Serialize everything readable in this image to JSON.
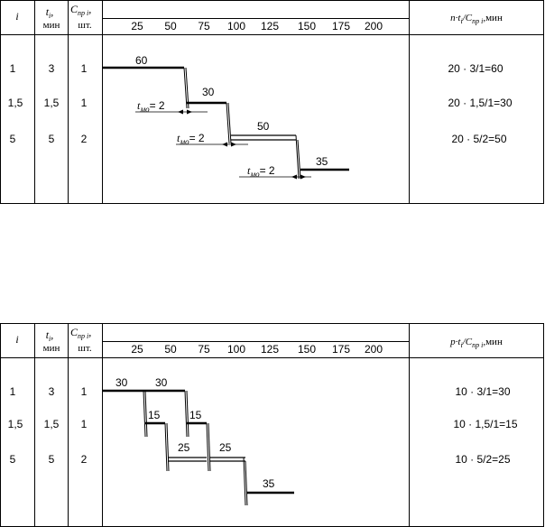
{
  "headers": {
    "i": "i",
    "t_main": "t",
    "t_sub": "i",
    "t_unit": "мин",
    "c_main": "C",
    "c_sub": "пр i",
    "c_unit": "шт.",
    "ticks": [
      "25",
      "50",
      "75",
      "100",
      "125",
      "150",
      "175",
      "200"
    ]
  },
  "tables": [
    {
      "id": "sequential",
      "formula_var": "n",
      "formula_rest": "·t",
      "formula_sub_i": "i",
      "formula_slash": "/C",
      "formula_sub_pr": "пр i",
      "formula_unit": ",мин",
      "rows": [
        {
          "i": "1",
          "t": "3",
          "c": "1",
          "calc": "20 · 3/1=60"
        },
        {
          "i": "1,5",
          "t": "1,5",
          "c": "1",
          "calc": "20 · 1,5/1=30"
        },
        {
          "i": "5",
          "t": "5",
          "c": "2",
          "calc": "20 · 5/2=50"
        }
      ],
      "bar_labels": [
        "60",
        "30",
        "50",
        "35"
      ],
      "tmo_labels": [
        {
          "t": "t",
          "sub": "мо",
          "val": "= 2"
        },
        {
          "t": "t",
          "sub": "мо",
          "val": "= 2"
        },
        {
          "t": "t",
          "sub": "мо",
          "val": "= 2"
        }
      ]
    },
    {
      "id": "parallel",
      "formula_var": "p",
      "formula_rest": "·t",
      "formula_sub_i": "i",
      "formula_slash": "/C",
      "formula_sub_pr": "пр i",
      "formula_unit": ",мин",
      "rows": [
        {
          "i": "1",
          "t": "3",
          "c": "1",
          "calc": "10 · 3/1=30"
        },
        {
          "i": "1,5",
          "t": "1,5",
          "c": "1",
          "calc": "10 · 1,5/1=15"
        },
        {
          "i": "5",
          "t": "5",
          "c": "2",
          "calc": "10 · 5/2=25"
        }
      ],
      "bar_labels": [
        "30",
        "30",
        "15",
        "15",
        "25",
        "25",
        "35"
      ]
    }
  ]
}
